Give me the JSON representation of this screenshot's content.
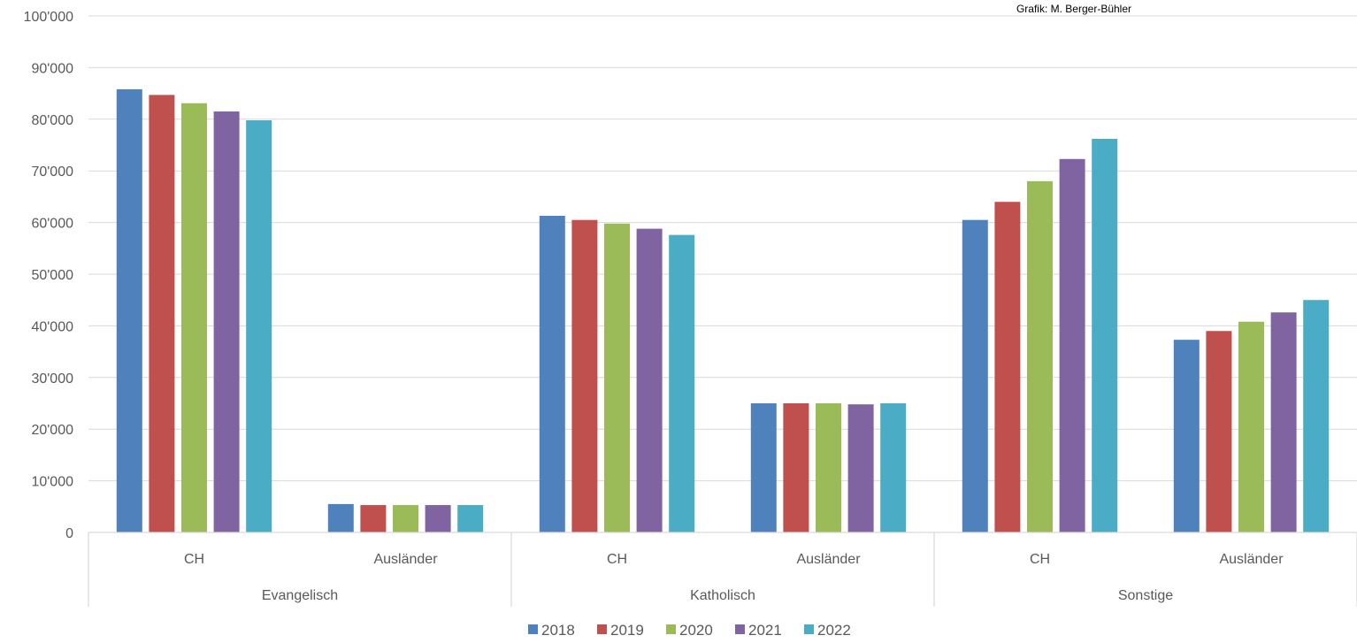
{
  "credit": "Grafik: M. Berger-Bühler",
  "chart_data": {
    "type": "bar",
    "groups": [
      "Evangelisch",
      "Katholisch",
      "Sonstige"
    ],
    "subcategories": [
      "CH",
      "Ausländer"
    ],
    "categories": [
      "Evangelisch CH",
      "Evangelisch Ausländer",
      "Katholisch CH",
      "Katholisch Ausländer",
      "Sonstige CH",
      "Sonstige Ausländer"
    ],
    "series": [
      {
        "name": "2018",
        "color": "#4F81BD",
        "values": [
          85800,
          5500,
          61300,
          25000,
          60500,
          37300
        ]
      },
      {
        "name": "2019",
        "color": "#C0504D",
        "values": [
          84700,
          5300,
          60500,
          25000,
          64000,
          39000
        ]
      },
      {
        "name": "2020",
        "color": "#9BBB59",
        "values": [
          83100,
          5300,
          59800,
          25000,
          68000,
          40800
        ]
      },
      {
        "name": "2021",
        "color": "#8064A2",
        "values": [
          81500,
          5300,
          58800,
          24800,
          72300,
          42600
        ]
      },
      {
        "name": "2022",
        "color": "#4BACC6",
        "values": [
          79800,
          5300,
          57600,
          25000,
          76200,
          45000
        ]
      }
    ],
    "ylim": [
      0,
      100000
    ],
    "yticks": [
      0,
      10000,
      20000,
      30000,
      40000,
      50000,
      60000,
      70000,
      80000,
      90000,
      100000
    ],
    "ytick_labels": [
      "0",
      "10'000",
      "20'000",
      "30'000",
      "40'000",
      "50'000",
      "60'000",
      "70'000",
      "80'000",
      "90'000",
      "100'000"
    ],
    "grid": true,
    "legend_position": "bottom"
  }
}
